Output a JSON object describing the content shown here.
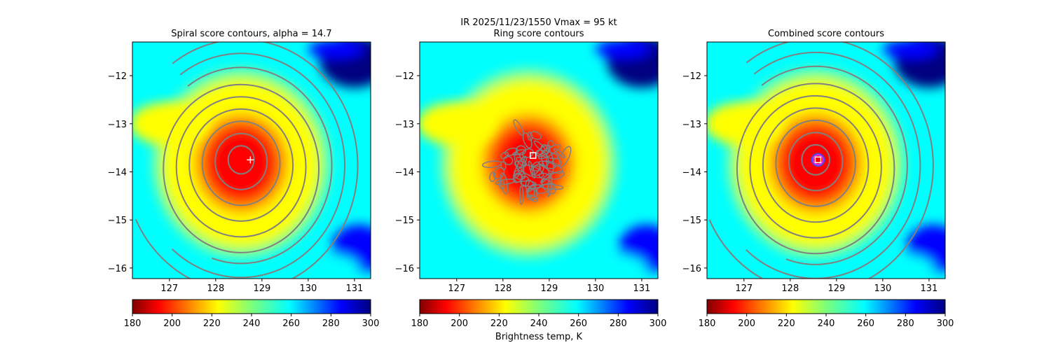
{
  "chart_data": {
    "type": "heatmap",
    "suptitle": "IR  2025/11/23/1550    Vmax = 95 kt",
    "colorbar_label": "Brightness temp, K",
    "colormap": "jet_r",
    "value_range": [
      180,
      300
    ],
    "xlim": [
      126.2,
      131.35
    ],
    "ylim": [
      -16.22,
      -11.3
    ],
    "x_ticks": [
      127,
      128,
      129,
      130,
      131
    ],
    "y_ticks": [
      -12,
      -13,
      -14,
      -15,
      -16
    ],
    "colorbar_ticks": [
      180,
      200,
      220,
      240,
      260,
      280,
      300
    ],
    "storm_center": {
      "lon": 128.55,
      "lat": -13.75
    },
    "panels": [
      {
        "title": "Spiral score contours, alpha = 14.7",
        "contour_style": "spiral",
        "marker": "plus",
        "marker_lon": 128.75,
        "marker_lat": -13.75
      },
      {
        "title": "Ring score contours",
        "contour_style": "ring",
        "marker": "square",
        "marker_lon": 128.65,
        "marker_lat": -13.66
      },
      {
        "title": "Combined score contours",
        "contour_style": "combined",
        "marker": "square",
        "marker_lon": 128.6,
        "marker_lat": -13.75
      }
    ]
  },
  "colors": {
    "contour": "#808080",
    "marker": "#ffffff",
    "highlight_ring": "#cc33ff",
    "axis": "#000000"
  }
}
